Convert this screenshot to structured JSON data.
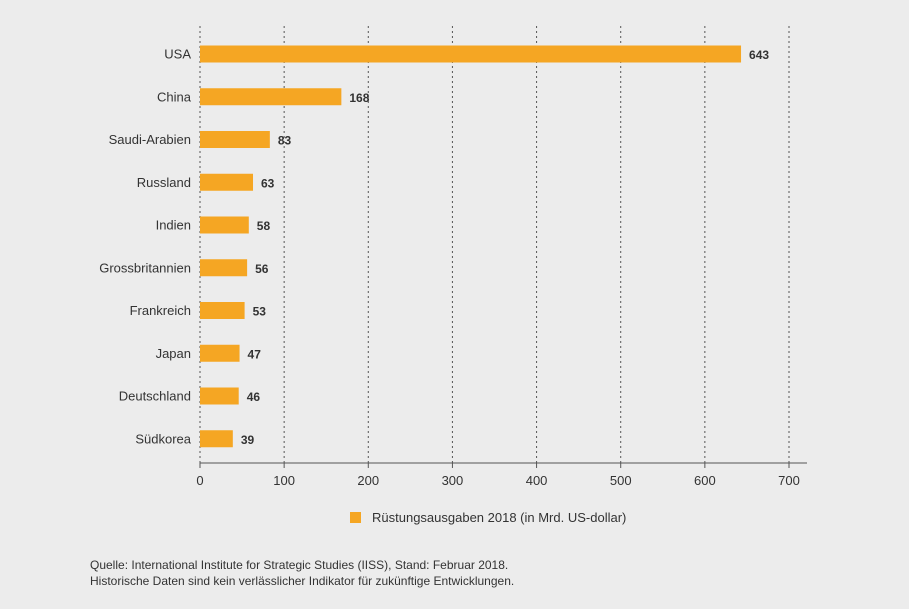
{
  "chart_data": {
    "type": "bar",
    "orientation": "horizontal",
    "categories": [
      "USA",
      "China",
      "Saudi-Arabien",
      "Russland",
      "Indien",
      "Grossbritannien",
      "Frankreich",
      "Japan",
      "Deutschland",
      "Südkorea"
    ],
    "series": [
      {
        "name": "Rüstungsausgaben 2018 (in Mrd. US-dollar)",
        "values": [
          643,
          168,
          83,
          63,
          58,
          56,
          53,
          47,
          46,
          39
        ],
        "color": "#f5a623"
      }
    ],
    "data_labels": [
      "643",
      "168",
      "83",
      "63",
      "58",
      "56",
      "53",
      "47",
      "46",
      "39"
    ],
    "xlim": [
      0,
      700
    ],
    "x_ticks": [
      0,
      100,
      200,
      300,
      400,
      500,
      600,
      700
    ],
    "x_tick_labels": [
      "0",
      "100",
      "200",
      "300",
      "400",
      "500",
      "600",
      "700"
    ],
    "grid": "vertical dotted",
    "legend_position": "bottom-center",
    "title": "",
    "xlabel": "",
    "ylabel": ""
  },
  "legend": {
    "label": "Rüstungsausgaben 2018 (in Mrd. US-dollar)"
  },
  "source": {
    "line1": "Quelle: International Institute for Strategic Studies (IISS), Stand: Februar 2018.",
    "line2": "Historische Daten sind kein verlässlicher Indikator für zukünftige Entwicklungen."
  },
  "colors": {
    "bar": "#f5a623",
    "background": "#ececec",
    "text": "#333333",
    "grid": "#555555"
  }
}
